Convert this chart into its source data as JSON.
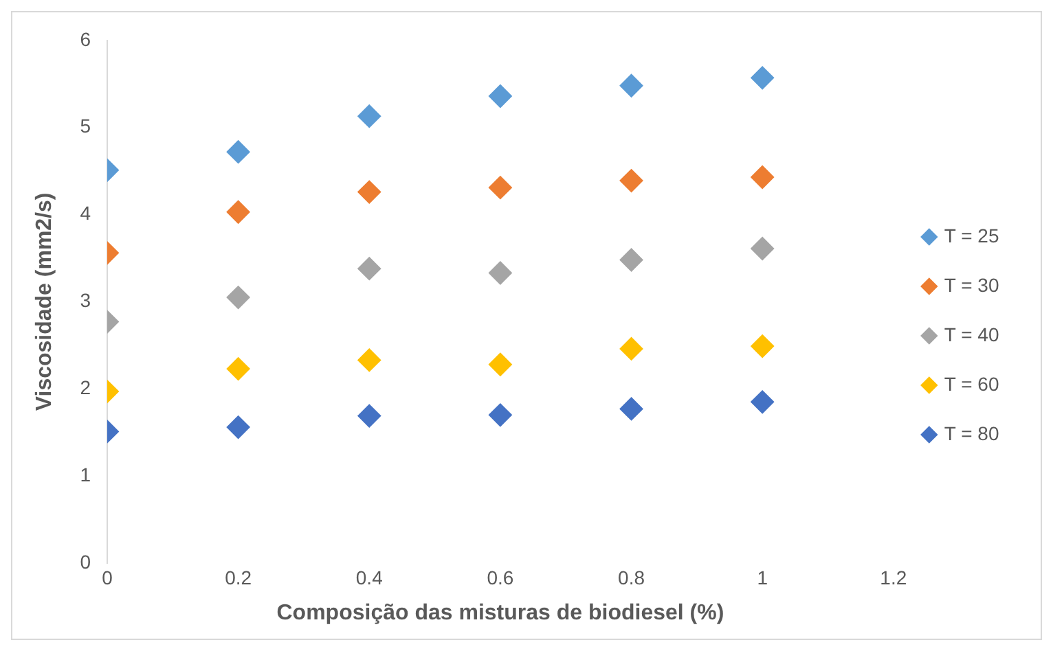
{
  "chart_data": {
    "type": "scatter",
    "xlabel": "Composição das misturas de biodiesel (%)",
    "ylabel": "Viscosidade (mm2/s)",
    "x": [
      0,
      0.2,
      0.4,
      0.6,
      0.8,
      1
    ],
    "series": [
      {
        "name": "T = 25",
        "color": "#5b9bd5",
        "values": [
          4.51,
          4.72,
          5.13,
          5.36,
          5.48,
          5.57
        ]
      },
      {
        "name": "T = 30",
        "color": "#ed7d31",
        "values": [
          3.56,
          4.03,
          4.26,
          4.31,
          4.39,
          4.43
        ]
      },
      {
        "name": "T = 40",
        "color": "#a5a5a5",
        "values": [
          2.77,
          3.05,
          3.38,
          3.33,
          3.48,
          3.61
        ]
      },
      {
        "name": "T = 60",
        "color": "#ffc000",
        "values": [
          1.97,
          2.23,
          2.33,
          2.28,
          2.46,
          2.49
        ]
      },
      {
        "name": "T = 80",
        "color": "#4472c4",
        "values": [
          1.51,
          1.56,
          1.69,
          1.7,
          1.77,
          1.85
        ]
      }
    ],
    "xlim": [
      0,
      1.2
    ],
    "xticks": [
      0,
      0.2,
      0.4,
      0.6,
      0.8,
      1,
      1.2
    ],
    "ylim": [
      0,
      6
    ],
    "yticks": [
      0,
      1,
      2,
      3,
      4,
      5,
      6
    ],
    "grid": false,
    "legend": "right",
    "marker": "diamond"
  }
}
